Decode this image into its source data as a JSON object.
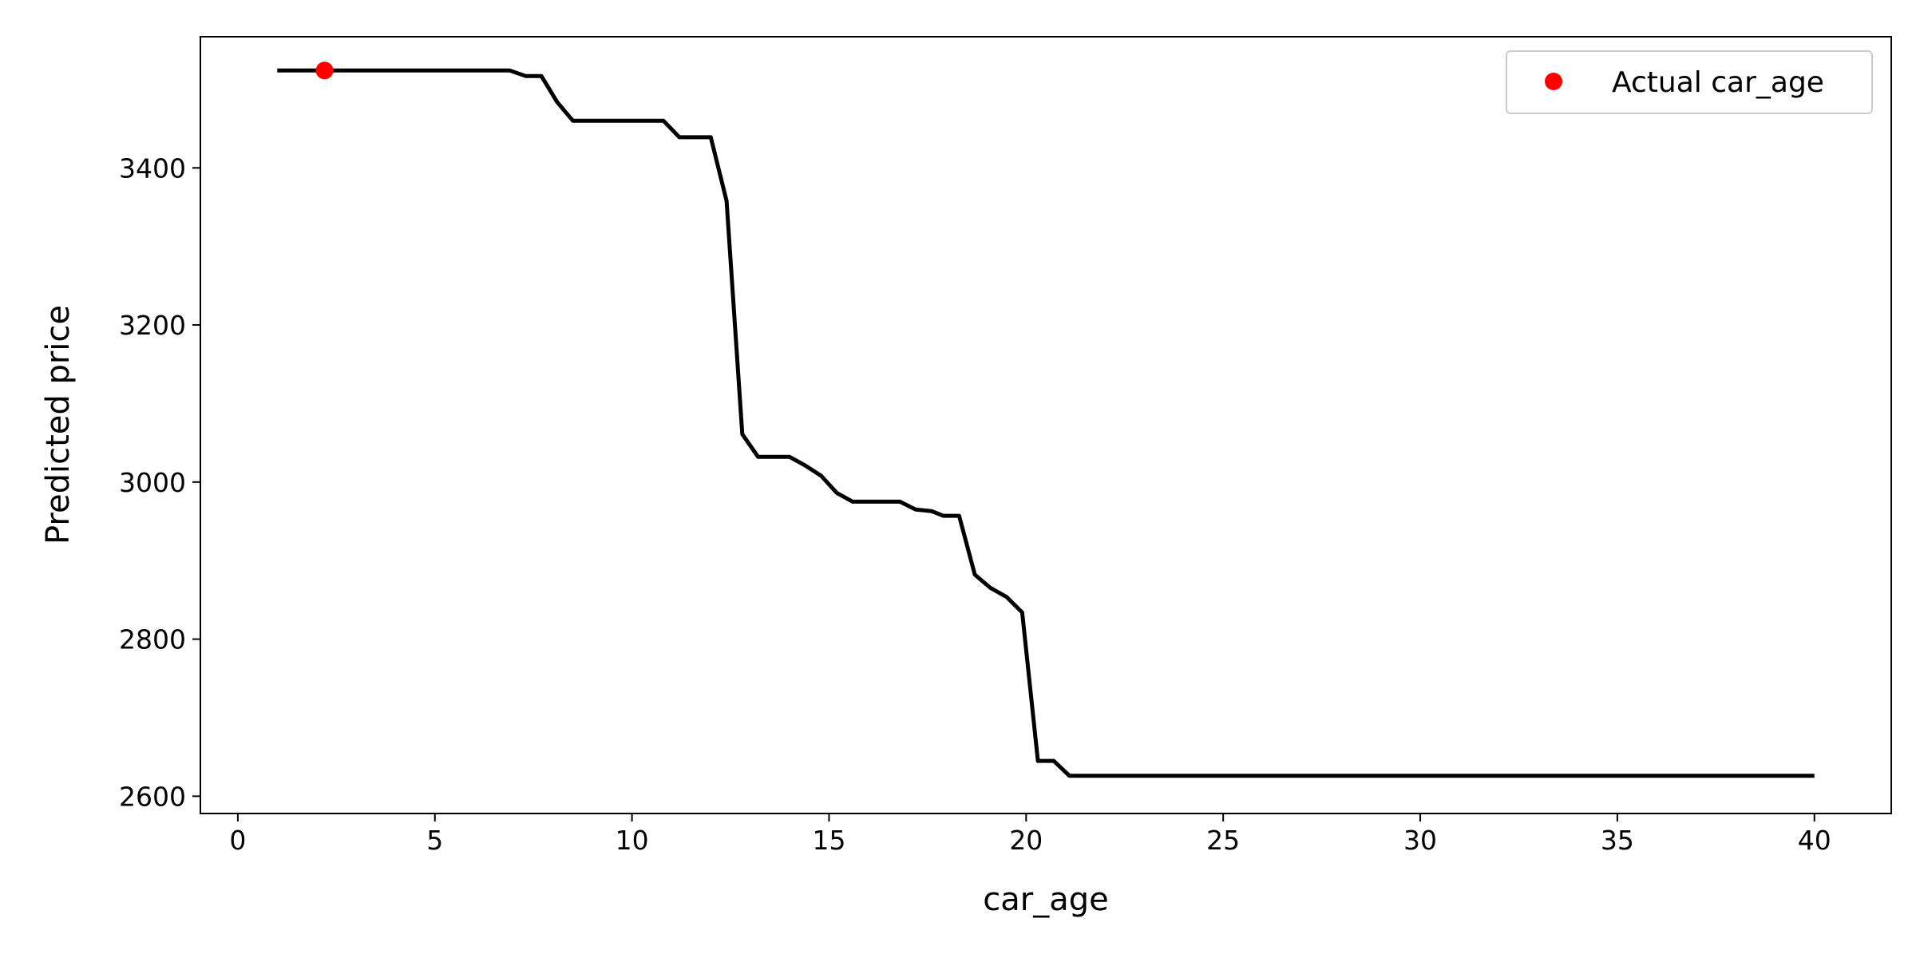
{
  "chart_data": {
    "type": "line",
    "xlabel": "car_age",
    "ylabel": "Predicted price",
    "xlim": [
      -0.95,
      41.95
    ],
    "ylim": [
      2578,
      3567
    ],
    "x_ticks": [
      0,
      5,
      10,
      15,
      20,
      25,
      30,
      35,
      40
    ],
    "y_ticks": [
      2600,
      2800,
      3000,
      3200,
      3400
    ],
    "grid": false,
    "legend": {
      "position": "top-right",
      "entries": [
        "Actual car_age"
      ]
    },
    "colors": {
      "line": "#000000",
      "marker": "#ff0000"
    },
    "series": [
      {
        "values": [
          [
            1.0,
            3524
          ],
          [
            6.9,
            3524
          ],
          [
            7.3,
            3517
          ],
          [
            7.7,
            3517
          ],
          [
            8.1,
            3484
          ],
          [
            8.5,
            3460
          ],
          [
            10.8,
            3460
          ],
          [
            11.2,
            3439
          ],
          [
            12.0,
            3439
          ],
          [
            12.4,
            3358
          ],
          [
            12.8,
            3061
          ],
          [
            13.2,
            3032
          ],
          [
            14.0,
            3032
          ],
          [
            14.4,
            3021
          ],
          [
            14.8,
            3008
          ],
          [
            15.2,
            2986
          ],
          [
            15.6,
            2975
          ],
          [
            16.8,
            2975
          ],
          [
            17.2,
            2965
          ],
          [
            17.6,
            2963
          ],
          [
            17.9,
            2957
          ],
          [
            18.3,
            2957
          ],
          [
            18.7,
            2882
          ],
          [
            19.1,
            2865
          ],
          [
            19.5,
            2854
          ],
          [
            19.9,
            2834
          ],
          [
            20.3,
            2645
          ],
          [
            20.7,
            2645
          ],
          [
            21.1,
            2626
          ],
          [
            40.0,
            2626
          ]
        ]
      }
    ],
    "markers": [
      {
        "name": "Actual car_age",
        "x": 2.2,
        "y": 3524
      }
    ]
  }
}
